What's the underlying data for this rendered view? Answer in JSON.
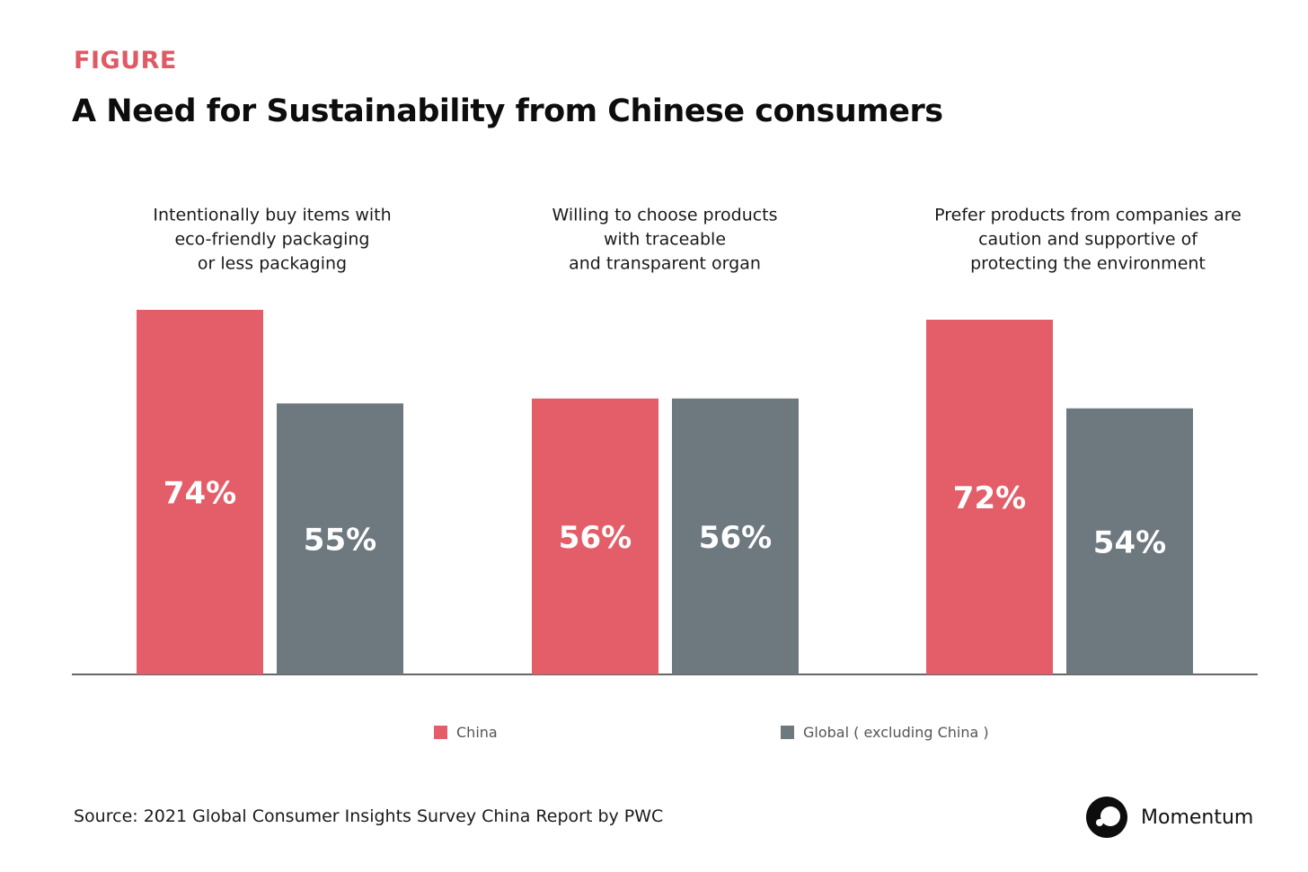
{
  "header": {
    "eyebrow": "FIGURE",
    "title": "A Need for Sustainability from Chinese consumers"
  },
  "colors": {
    "china": "#e45e69",
    "global": "#6e787f",
    "accent": "#e05a66",
    "axis": "#333333"
  },
  "chart_data": {
    "type": "bar",
    "title": "A Need for Sustainability from Chinese consumers",
    "categories": [
      [
        "Intentionally buy items with",
        "eco-friendly packaging",
        "or less packaging"
      ],
      [
        "Willing to choose products",
        "with traceable",
        "and transparent organ"
      ],
      [
        "Prefer products from companies are",
        "caution and supportive of",
        "protecting the environment"
      ]
    ],
    "series": [
      {
        "name": "China",
        "values": [
          74,
          56,
          72
        ],
        "labels": [
          "74%",
          "56%",
          "72%"
        ]
      },
      {
        "name": "Global ( excluding China )",
        "values": [
          55,
          56,
          54
        ],
        "labels": [
          "55%",
          "56%",
          "54%"
        ]
      }
    ],
    "unit": "%",
    "ylim": [
      0,
      100
    ],
    "grid": false,
    "legend_position": "bottom-center"
  },
  "legend": {
    "china_label": "China",
    "global_label": "Global ( excluding China )"
  },
  "footer": {
    "source": "Source:  2021 Global Consumer Insights Survey China Report by PWC",
    "brand_name": "Momentum",
    "brand_icon": "momentum-logo-icon"
  }
}
